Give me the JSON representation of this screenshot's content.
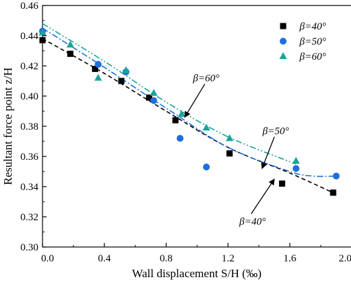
{
  "chart_data": {
    "type": "scatter",
    "xlabel": "Wall displacement S/H (‰)",
    "ylabel": "Resultant force point z/H",
    "xlim": [
      0.0,
      2.0
    ],
    "ylim": [
      0.3,
      0.46
    ],
    "xticks": [
      0.0,
      0.4,
      0.8,
      1.2,
      1.6,
      2.0
    ],
    "xtick_labels": [
      "0.0",
      "0.4",
      "0.8",
      "1.2",
      "1.6",
      "2.0"
    ],
    "yticks": [
      0.3,
      0.32,
      0.34,
      0.36,
      0.38,
      0.4,
      0.42,
      0.44,
      0.46
    ],
    "ytick_labels": [
      "0.30",
      "0.32",
      "0.34",
      "0.36",
      "0.38",
      "0.40",
      "0.42",
      "0.44",
      "0.46"
    ],
    "grid": false,
    "legend_position": "top-right",
    "series": [
      {
        "name": "β=40°",
        "marker": "square",
        "color": "#000000",
        "line_style": "dash",
        "points": [
          [
            0.0,
            0.437
          ],
          [
            0.18,
            0.428
          ],
          [
            0.34,
            0.418
          ],
          [
            0.51,
            0.41
          ],
          [
            0.69,
            0.399
          ],
          [
            0.86,
            0.384
          ],
          [
            1.21,
            0.362
          ],
          [
            1.55,
            0.342
          ],
          [
            1.88,
            0.336
          ]
        ],
        "fit": [
          [
            0.0,
            0.438
          ],
          [
            0.4,
            0.415
          ],
          [
            0.8,
            0.39
          ],
          [
            1.2,
            0.366
          ],
          [
            1.6,
            0.349
          ],
          [
            1.9,
            0.335
          ]
        ]
      },
      {
        "name": "β=50°",
        "marker": "circle",
        "color": "#1f6fdf",
        "line_style": "dash-dot",
        "points": [
          [
            0.0,
            0.443
          ],
          [
            0.36,
            0.421
          ],
          [
            0.54,
            0.416
          ],
          [
            0.72,
            0.397
          ],
          [
            0.89,
            0.372
          ],
          [
            1.06,
            0.353
          ],
          [
            1.64,
            0.352
          ],
          [
            1.9,
            0.347
          ]
        ],
        "fit": [
          [
            0.0,
            0.445
          ],
          [
            0.4,
            0.419
          ],
          [
            0.8,
            0.392
          ],
          [
            1.2,
            0.366
          ],
          [
            1.6,
            0.35
          ],
          [
            1.75,
            0.347
          ],
          [
            1.9,
            0.347
          ]
        ]
      },
      {
        "name": "β=60°",
        "marker": "triangle",
        "color": "#1aa39a",
        "line_style": "dash-dot-dot",
        "points": [
          [
            0.0,
            0.442
          ],
          [
            0.18,
            0.434
          ],
          [
            0.36,
            0.412
          ],
          [
            0.54,
            0.417
          ],
          [
            0.72,
            0.402
          ],
          [
            0.9,
            0.388
          ],
          [
            1.06,
            0.379
          ],
          [
            1.21,
            0.372
          ],
          [
            1.64,
            0.357
          ]
        ],
        "fit": [
          [
            0.0,
            0.448
          ],
          [
            0.4,
            0.423
          ],
          [
            0.8,
            0.396
          ],
          [
            1.2,
            0.373
          ],
          [
            1.64,
            0.355
          ]
        ]
      }
    ],
    "annotations": [
      {
        "text": "β=60°",
        "anchor": [
          1.05,
          0.408
        ],
        "arrow_to": [
          0.92,
          0.386
        ]
      },
      {
        "text": "β=50°",
        "anchor": [
          1.5,
          0.373
        ],
        "arrow_to": [
          1.42,
          0.352
        ]
      },
      {
        "text": "β=40°",
        "anchor": [
          1.35,
          0.322
        ],
        "arrow_to": [
          1.5,
          0.345
        ]
      }
    ]
  }
}
